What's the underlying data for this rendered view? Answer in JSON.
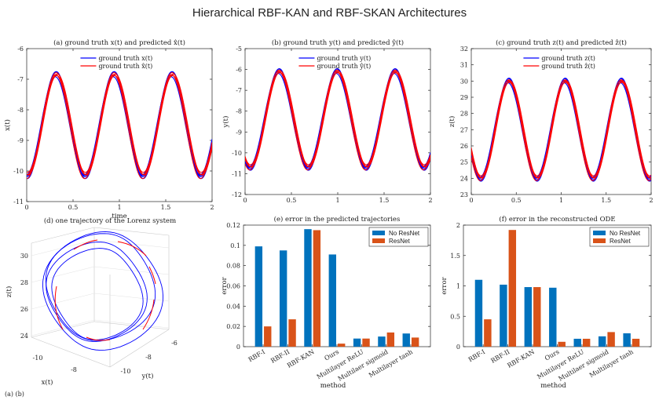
{
  "figure": {
    "title": "Hierarchical RBF-KAN and RBF-SKAN Architectures",
    "footer_text": "(a)    (b)"
  },
  "chart_data": [
    {
      "id": "a",
      "type": "line",
      "title": "(a) ground truth x(t) and predicted x̂(t)",
      "xlabel": "time",
      "ylabel": "x(t)",
      "xlim": [
        0,
        2
      ],
      "ylim": [
        -11,
        -6
      ],
      "xticks": [
        0,
        0.5,
        1,
        1.5,
        2
      ],
      "yticks": [
        -11,
        -10,
        -9,
        -8,
        -7,
        -6
      ],
      "mean": -8.5,
      "amp": 1.65,
      "period": 0.625,
      "phase": 0.0,
      "series": [
        {
          "name": "ground truth x(t)",
          "color": "#0000ff"
        },
        {
          "name": "ground truth x̂(t)",
          "color": "#ff0000"
        }
      ]
    },
    {
      "id": "b",
      "type": "line",
      "title": "(b) ground truth y(t) and predicted ŷ(t)",
      "xlabel": "",
      "ylabel": "y(t)",
      "xlim": [
        0,
        2
      ],
      "ylim": [
        -12,
        -5
      ],
      "xticks": [
        0,
        0.5,
        1,
        1.5,
        2
      ],
      "yticks": [
        -12,
        -11,
        -10,
        -9,
        -8,
        -7,
        -6,
        -5
      ],
      "mean": -8.4,
      "amp": 2.3,
      "period": 0.625,
      "phase": 0.05,
      "series": [
        {
          "name": "ground truth y(t)",
          "color": "#0000ff"
        },
        {
          "name": "ground truth ŷ(t)",
          "color": "#ff0000"
        }
      ]
    },
    {
      "id": "c",
      "type": "line",
      "title": "(c) ground truth z(t) and predicted ẑ(t)",
      "xlabel": "",
      "ylabel": "z(t)",
      "xlim": [
        0,
        2
      ],
      "ylim": [
        23,
        32
      ],
      "xticks": [
        0,
        0.5,
        1,
        1.5,
        2
      ],
      "yticks": [
        23,
        24,
        25,
        26,
        27,
        28,
        29,
        30,
        31,
        32
      ],
      "mean": 27.0,
      "amp": 3.0,
      "period": 0.625,
      "phase": 0.1,
      "series": [
        {
          "name": "ground truth z(t)",
          "color": "#0000ff"
        },
        {
          "name": "ground truth ẑ(t)",
          "color": "#ff0000"
        }
      ]
    },
    {
      "id": "d",
      "type": "line3d",
      "title": "(d) one trajectory of the Lorenz system",
      "xlabel": "x(t)",
      "ylabel": "y(t)",
      "zlabel": "z(t)",
      "zticks": [
        24,
        26,
        28,
        30
      ],
      "xticks": [
        -10,
        -8
      ],
      "yticks": [
        -10,
        -8,
        -6
      ]
    },
    {
      "id": "e",
      "type": "bar",
      "title": "(e) error in the predicted trajectories",
      "xlabel": "method",
      "ylabel": "error",
      "ylim": [
        0,
        0.12
      ],
      "yticks": [
        0,
        0.02,
        0.04,
        0.06,
        0.08,
        0.1,
        0.12
      ],
      "categories": [
        "RBF-I",
        "RBF-II",
        "RBF-KAN",
        "Ours",
        "Multilayer ReLU",
        "Multilaer sigmoid",
        "Multilayer tanh"
      ],
      "series": [
        {
          "name": "No ResNet",
          "color": "#0072bd",
          "values": [
            0.099,
            0.095,
            0.116,
            0.091,
            0.008,
            0.01,
            0.013
          ]
        },
        {
          "name": "ResNet",
          "color": "#d95319",
          "values": [
            0.02,
            0.027,
            0.115,
            0.003,
            0.008,
            0.014,
            0.009
          ]
        }
      ]
    },
    {
      "id": "f",
      "type": "bar",
      "title": "(f) error in the reconstructed ODE",
      "xlabel": "method",
      "ylabel": "error",
      "ylim": [
        0,
        2
      ],
      "yticks": [
        0,
        0.5,
        1,
        1.5,
        2
      ],
      "categories": [
        "RBF-I",
        "RBF-II",
        "RBF-KAN",
        "Ours",
        "Multilayer ReLU",
        "Multilaer sigmoid",
        "Multilayer tanh"
      ],
      "series": [
        {
          "name": "No ResNet",
          "color": "#0072bd",
          "values": [
            1.1,
            1.02,
            0.98,
            0.97,
            0.13,
            0.17,
            0.22
          ]
        },
        {
          "name": "ResNet",
          "color": "#d95319",
          "values": [
            0.45,
            1.92,
            0.98,
            0.08,
            0.13,
            0.24,
            0.13
          ]
        }
      ]
    }
  ]
}
